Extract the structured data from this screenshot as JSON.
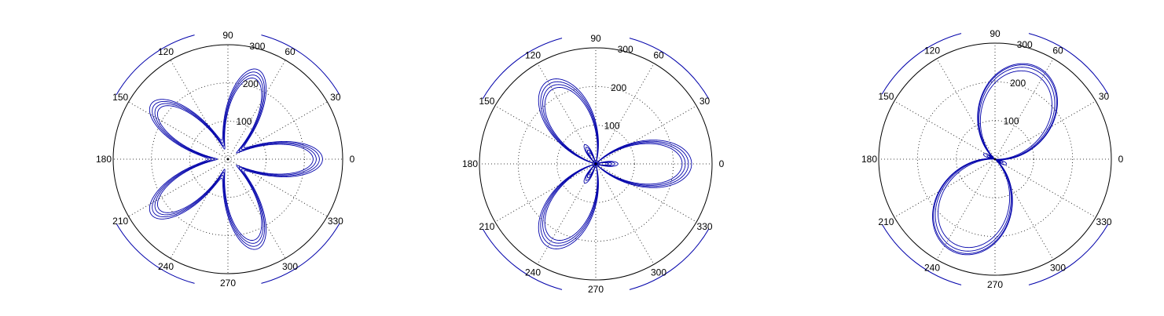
{
  "colors": {
    "curve": "#0000aa",
    "frame": "#000000",
    "grid": "#000000",
    "background": "#ffffff"
  },
  "chart_data": [
    {
      "type": "polar",
      "title": "",
      "rlim": [
        0,
        300
      ],
      "radial_ticks": [
        "100",
        "200",
        "300"
      ],
      "angle_ticks": [
        "0",
        "30",
        "60",
        "90",
        "120",
        "150",
        "180",
        "210",
        "240",
        "270",
        "300",
        "330"
      ],
      "grid": true,
      "series": [
        {
          "curve": "rose",
          "petals": 5,
          "phase_deg": 0,
          "r_inner": 40,
          "r_outer": 235,
          "strands": 4,
          "strand_spacing": 4
        }
      ]
    },
    {
      "type": "polar",
      "title": "",
      "rlim": [
        0,
        300
      ],
      "radial_ticks": [
        "100",
        "200",
        "300"
      ],
      "angle_ticks": [
        "0",
        "30",
        "60",
        "90",
        "120",
        "150",
        "180",
        "210",
        "240",
        "270",
        "300",
        "330"
      ],
      "grid": true,
      "series": [
        {
          "curve": "rose",
          "petals": 3,
          "phase_deg": 0,
          "r_inner": -45,
          "r_outer": 235,
          "strands": 4,
          "strand_spacing": 4
        }
      ]
    },
    {
      "type": "polar",
      "title": "",
      "rlim": [
        0,
        300
      ],
      "radial_ticks": [
        "100",
        "200",
        "300"
      ],
      "angle_ticks": [
        "0",
        "30",
        "60",
        "90",
        "120",
        "150",
        "180",
        "210",
        "240",
        "270",
        "300",
        "330"
      ],
      "grid": true,
      "series": [
        {
          "curve": "limacon",
          "lobes": 2,
          "phase_deg": 66,
          "r_inner": -20,
          "r_outer": 255,
          "strands": 4,
          "strand_spacing": 4
        }
      ]
    }
  ]
}
